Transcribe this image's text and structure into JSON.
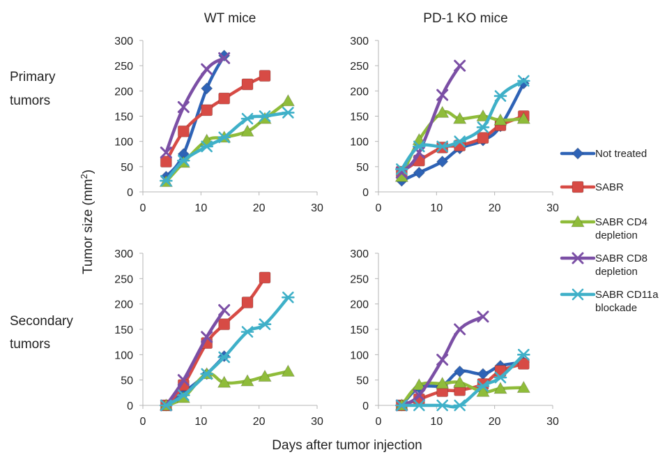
{
  "figure": {
    "column_titles": [
      "WT mice",
      "PD-1 KO mice"
    ],
    "row_labels": [
      [
        "Primary",
        "tumors"
      ],
      [
        "Secondary",
        "tumors"
      ]
    ],
    "ylabel_text": "Tumor size (mm",
    "ylabel_superscript": "2",
    "ylabel_close": ")",
    "xlabel": "Days after tumor injection"
  },
  "chart_data": {
    "type": "line",
    "legend_placement": "right",
    "series_styles": [
      {
        "name": "Not treated",
        "color": "#2e63b6",
        "marker": "diamond"
      },
      {
        "name": "SABR",
        "color": "#d74b45",
        "marker": "square"
      },
      {
        "name": "SABR CD4 depletion",
        "color": "#8fbc3a",
        "marker": "triangle"
      },
      {
        "name": "SABR CD8 depletion",
        "color": "#7b4fa5",
        "marker": "x"
      },
      {
        "name": "SABR CD11a blockade",
        "color": "#3fb0c8",
        "marker": "star"
      }
    ],
    "legend_lines": [
      [
        "Not treated"
      ],
      [
        "SABR"
      ],
      [
        "SABR CD4",
        "depletion"
      ],
      [
        "SABR CD8",
        "depletion"
      ],
      [
        "SABR CD11a",
        "blockade"
      ]
    ],
    "panels": [
      {
        "group": "WT mice",
        "tumor": "Primary tumors",
        "xlim": [
          0,
          30
        ],
        "ylim": [
          0,
          300
        ],
        "xticks": [
          0,
          10,
          20,
          30
        ],
        "yticks": [
          0,
          50,
          100,
          150,
          200,
          250,
          300
        ],
        "series": [
          {
            "name": "Not treated",
            "points": [
              [
                4,
                30
              ],
              [
                7,
                75
              ],
              [
                11,
                205
              ],
              [
                14,
                270
              ]
            ]
          },
          {
            "name": "SABR",
            "points": [
              [
                4,
                60
              ],
              [
                7,
                120
              ],
              [
                11,
                162
              ],
              [
                14,
                185
              ],
              [
                18,
                213
              ],
              [
                21,
                230
              ]
            ]
          },
          {
            "name": "SABR CD4 depletion",
            "points": [
              [
                4,
                20
              ],
              [
                7,
                58
              ],
              [
                11,
                102
              ],
              [
                14,
                108
              ],
              [
                18,
                120
              ],
              [
                21,
                145
              ],
              [
                25,
                180
              ]
            ]
          },
          {
            "name": "SABR CD8 depletion",
            "points": [
              [
                4,
                78
              ],
              [
                7,
                168
              ],
              [
                11,
                243
              ],
              [
                14,
                265
              ]
            ]
          },
          {
            "name": "SABR CD11a blockade",
            "points": [
              [
                4,
                22
              ],
              [
                7,
                62
              ],
              [
                11,
                90
              ],
              [
                14,
                108
              ],
              [
                18,
                145
              ],
              [
                21,
                150
              ],
              [
                25,
                157
              ]
            ]
          }
        ]
      },
      {
        "group": "PD-1 KO mice",
        "tumor": "Primary tumors",
        "xlim": [
          0,
          30
        ],
        "ylim": [
          0,
          300
        ],
        "xticks": [
          0,
          10,
          20,
          30
        ],
        "yticks": [
          0,
          50,
          100,
          150,
          200,
          250,
          300
        ],
        "series": [
          {
            "name": "Not treated",
            "points": [
              [
                4,
                22
              ],
              [
                7,
                38
              ],
              [
                11,
                60
              ],
              [
                14,
                86
              ],
              [
                18,
                102
              ],
              [
                21,
                130
              ],
              [
                25,
                215
              ]
            ]
          },
          {
            "name": "SABR",
            "points": [
              [
                4,
                40
              ],
              [
                7,
                62
              ],
              [
                11,
                88
              ],
              [
                14,
                92
              ],
              [
                18,
                107
              ],
              [
                21,
                132
              ],
              [
                25,
                150
              ]
            ]
          },
          {
            "name": "SABR CD4 depletion",
            "points": [
              [
                4,
                30
              ],
              [
                7,
                103
              ],
              [
                11,
                157
              ],
              [
                14,
                145
              ],
              [
                18,
                150
              ],
              [
                21,
                142
              ],
              [
                25,
                145
              ]
            ]
          },
          {
            "name": "SABR CD8 depletion",
            "points": [
              [
                4,
                38
              ],
              [
                7,
                78
              ],
              [
                11,
                192
              ],
              [
                14,
                250
              ]
            ]
          },
          {
            "name": "SABR CD11a blockade",
            "points": [
              [
                4,
                45
              ],
              [
                7,
                90
              ],
              [
                11,
                90
              ],
              [
                14,
                100
              ],
              [
                18,
                128
              ],
              [
                21,
                190
              ],
              [
                25,
                220
              ]
            ]
          }
        ]
      },
      {
        "group": "WT mice",
        "tumor": "Secondary tumors",
        "xlim": [
          0,
          30
        ],
        "ylim": [
          0,
          300
        ],
        "xticks": [
          0,
          10,
          20,
          30
        ],
        "yticks": [
          0,
          50,
          100,
          150,
          200,
          250,
          300
        ],
        "series": [
          {
            "name": "Not treated",
            "points": [
              [
                4,
                0
              ],
              [
                7,
                25
              ],
              [
                11,
                62
              ],
              [
                14,
                97
              ]
            ]
          },
          {
            "name": "SABR",
            "points": [
              [
                4,
                0
              ],
              [
                7,
                40
              ],
              [
                11,
                123
              ],
              [
                14,
                160
              ],
              [
                18,
                203
              ],
              [
                21,
                252
              ]
            ]
          },
          {
            "name": "SABR CD4 depletion",
            "points": [
              [
                4,
                0
              ],
              [
                7,
                15
              ],
              [
                11,
                62
              ],
              [
                14,
                45
              ],
              [
                18,
                48
              ],
              [
                21,
                57
              ],
              [
                25,
                67
              ]
            ]
          },
          {
            "name": "SABR CD8 depletion",
            "points": [
              [
                4,
                0
              ],
              [
                7,
                50
              ],
              [
                11,
                135
              ],
              [
                14,
                188
              ]
            ]
          },
          {
            "name": "SABR CD11a blockade",
            "points": [
              [
                4,
                0
              ],
              [
                7,
                20
              ],
              [
                11,
                62
              ],
              [
                14,
                95
              ],
              [
                18,
                145
              ],
              [
                21,
                160
              ],
              [
                25,
                213
              ]
            ]
          }
        ]
      },
      {
        "group": "PD-1 KO mice",
        "tumor": "Secondary tumors",
        "xlim": [
          0,
          30
        ],
        "ylim": [
          0,
          300
        ],
        "xticks": [
          0,
          10,
          20,
          30
        ],
        "yticks": [
          0,
          50,
          100,
          150,
          200,
          250,
          300
        ],
        "series": [
          {
            "name": "Not treated",
            "points": [
              [
                4,
                0
              ],
              [
                7,
                35
              ],
              [
                11,
                40
              ],
              [
                14,
                67
              ],
              [
                18,
                62
              ],
              [
                21,
                78
              ],
              [
                25,
                85
              ]
            ]
          },
          {
            "name": "SABR",
            "points": [
              [
                4,
                0
              ],
              [
                7,
                12
              ],
              [
                11,
                28
              ],
              [
                14,
                30
              ],
              [
                18,
                42
              ],
              [
                21,
                68
              ],
              [
                25,
                82
              ]
            ]
          },
          {
            "name": "SABR CD4 depletion",
            "points": [
              [
                4,
                0
              ],
              [
                7,
                40
              ],
              [
                11,
                43
              ],
              [
                14,
                45
              ],
              [
                18,
                27
              ],
              [
                21,
                33
              ],
              [
                25,
                35
              ]
            ]
          },
          {
            "name": "SABR CD8 depletion",
            "points": [
              [
                4,
                0
              ],
              [
                7,
                20
              ],
              [
                11,
                90
              ],
              [
                14,
                150
              ],
              [
                18,
                175
              ]
            ]
          },
          {
            "name": "SABR CD11a blockade",
            "points": [
              [
                4,
                0
              ],
              [
                7,
                0
              ],
              [
                11,
                0
              ],
              [
                14,
                0
              ],
              [
                18,
                38
              ],
              [
                21,
                55
              ],
              [
                25,
                100
              ]
            ]
          }
        ]
      }
    ]
  }
}
